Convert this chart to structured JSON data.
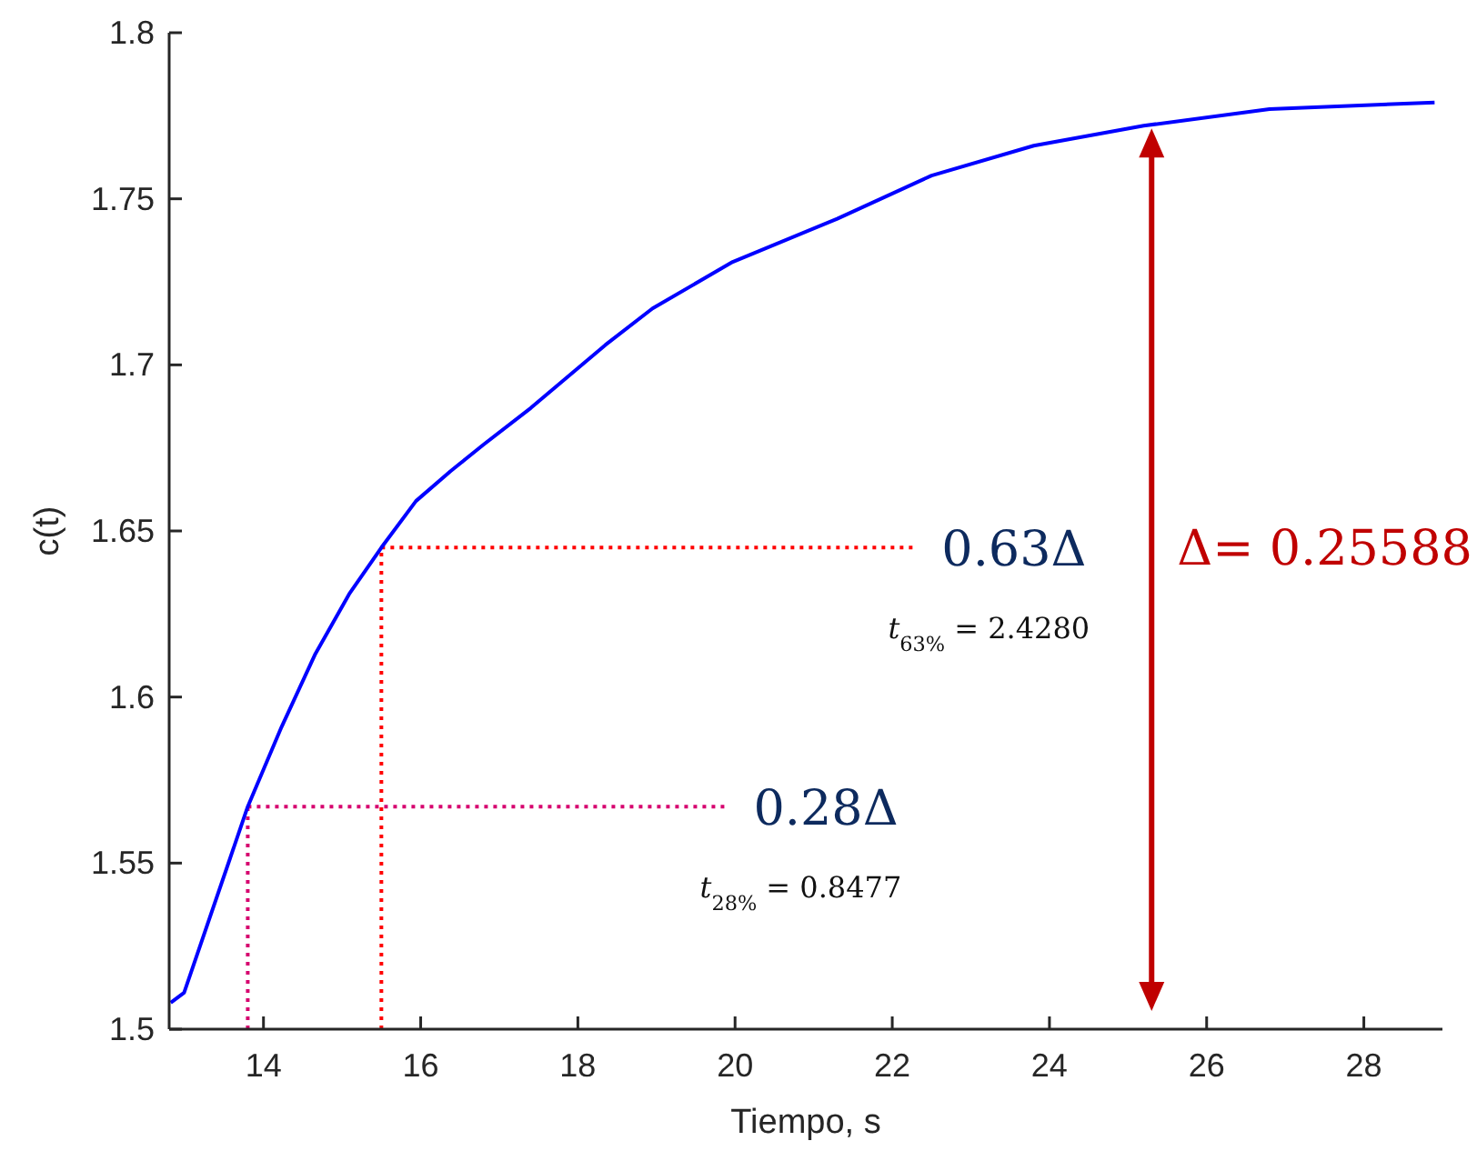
{
  "chart_data": {
    "type": "line",
    "xlabel": "Tiempo, s",
    "ylabel": "c(t)",
    "xlim": [
      12.8,
      29
    ],
    "xticks": [
      14,
      16,
      18,
      20,
      22,
      24,
      26,
      28
    ],
    "ylim": [
      1.5,
      1.8
    ],
    "yticks": [
      1.5,
      1.55,
      1.6,
      1.65,
      1.7,
      1.75,
      1.8
    ],
    "marker": "none",
    "line_style": "solid",
    "series": [
      {
        "color": "#0000ff",
        "x": [
          12.82,
          12.99,
          13.8,
          14.23,
          14.66,
          15.09,
          15.5,
          15.94,
          16.38,
          16.8,
          17.4,
          18.35,
          18.95,
          19.97,
          21.3,
          22.5,
          23.8,
          25.2,
          26.8,
          28.9
        ],
        "values": [
          1.508,
          1.511,
          1.567,
          1.591,
          1.613,
          1.631,
          1.645,
          1.659,
          1.668,
          1.676,
          1.687,
          1.706,
          1.717,
          1.731,
          1.744,
          1.757,
          1.766,
          1.772,
          1.777,
          1.779
        ]
      }
    ],
    "ref_lines": [
      {
        "axis": "x",
        "value": 13.8,
        "color": "#d6006e",
        "line_style": "dotted"
      },
      {
        "axis": "y",
        "value": 1.567,
        "label": "0.28Δ",
        "color": "#d6006e",
        "line_style": "dotted"
      },
      {
        "axis": "x",
        "value": 15.5,
        "color": "#ff0000",
        "line_style": "dotted"
      },
      {
        "axis": "y",
        "value": 1.645,
        "label": "0.63Δ",
        "color": "#ff0000",
        "line_style": "dotted"
      },
      {
        "axis": "x",
        "value": 25.3,
        "color": "#c00000",
        "line_style": "solid"
      }
    ],
    "annotations": [
      "t$_{28%}$ = 0.8477",
      "t$_{63%}$ = 2.4280",
      "Δ= 0.25588"
    ]
  }
}
